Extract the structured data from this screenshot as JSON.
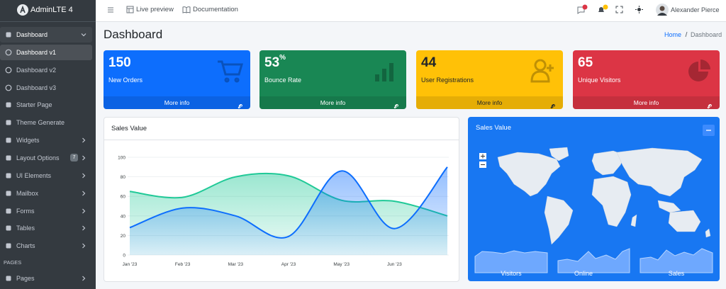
{
  "sidebar": {
    "brand": "AdminLTE 4",
    "items": [
      {
        "label": "Dashboard",
        "arrow": "down"
      },
      {
        "label": "Dashboard v1"
      },
      {
        "label": "Dashboard v2"
      },
      {
        "label": "Dashboard v3"
      },
      {
        "label": "Starter Page"
      },
      {
        "label": "Theme Generate"
      },
      {
        "label": "Widgets",
        "arrow": "right"
      },
      {
        "label": "Layout Options",
        "arrow": "right",
        "badge": "7"
      },
      {
        "label": "UI Elements",
        "arrow": "right"
      },
      {
        "label": "Mailbox",
        "arrow": "right"
      },
      {
        "label": "Forms",
        "arrow": "right"
      },
      {
        "label": "Tables",
        "arrow": "right"
      },
      {
        "label": "Charts",
        "arrow": "right"
      }
    ],
    "section": "PAGES",
    "section_items": [
      {
        "label": "Pages",
        "arrow": "right"
      }
    ]
  },
  "navbar": {
    "links": [
      "Live preview",
      "Documentation"
    ],
    "user": "Alexander Pierce"
  },
  "header": {
    "title": "Dashboard",
    "breadcrumb": [
      "Home",
      "Dashboard"
    ]
  },
  "small_boxes": [
    {
      "value": "150",
      "label": "New Orders",
      "footer": "More info",
      "color": "#0d6efd"
    },
    {
      "value": "53",
      "sup": "%",
      "label": "Bounce Rate",
      "footer": "More info",
      "color": "#198754"
    },
    {
      "value": "44",
      "label": "User Registrations",
      "footer": "More info",
      "color": "#ffc107"
    },
    {
      "value": "65",
      "label": "Unique Visitors",
      "footer": "More info",
      "color": "#dc3545"
    }
  ],
  "chart_card": {
    "title": "Sales Value"
  },
  "chart_data": {
    "type": "area",
    "categories": [
      "Jan '23",
      "Feb '23",
      "Mar '23",
      "Apr '23",
      "May '23",
      "Jun '23",
      null
    ],
    "series": [
      {
        "color": "#20c997",
        "values": [
          65,
          59,
          80,
          81,
          56,
          55,
          40
        ]
      },
      {
        "color": "#0d6efd",
        "values": [
          28,
          48,
          40,
          19,
          86,
          27,
          90
        ]
      }
    ],
    "ylim": [
      0,
      100
    ],
    "yticks": [
      0,
      20,
      40,
      60,
      80,
      100
    ],
    "grid": true
  },
  "map_card": {
    "title": "Sales Value",
    "sparklines": [
      "Visitors",
      "Online",
      "Sales"
    ]
  }
}
